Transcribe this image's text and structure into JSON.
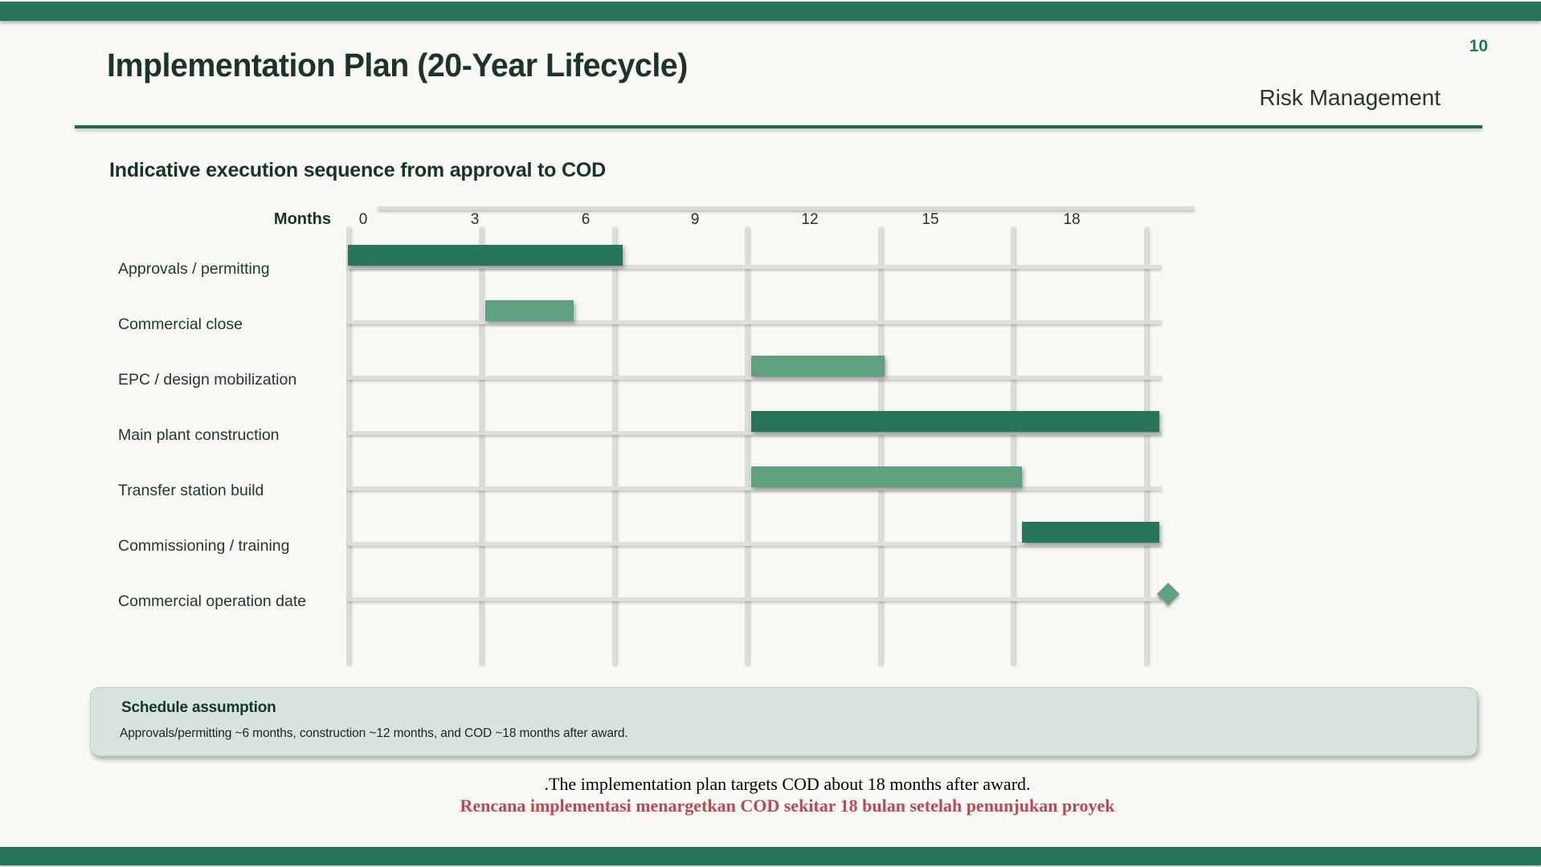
{
  "slide": {
    "page_number": "10",
    "title": "Implementation Plan (20-Year Lifecycle)",
    "header_right": "Risk Management",
    "section_heading": "Indicative execution sequence from approval to COD",
    "footer_note_en": ".The implementation plan targets COD about 18 months after award.",
    "footer_note_id": "Rencana implementasi menargetkan COD sekitar 18 bulan setelah penunjukan proyek"
  },
  "callout": {
    "title": "Schedule assumption",
    "body": "Approvals/permitting ~6 months, construction ~12 months, and COD ~18 months after award."
  },
  "colors": {
    "accent_dark_green": "#26755C",
    "accent_light_green": "#5FA07E",
    "band_green": "#27755D",
    "rule_green": "#1D6B50",
    "page_number_green": "#1E7A56",
    "note_red": "#BF4751",
    "callout_bg": "#D7E3DC",
    "grid_gray": "#D9DED9",
    "background": "#F8F8F5"
  },
  "chart_data": {
    "type": "gantt",
    "title": "Indicative execution sequence from approval to COD",
    "axis_label": "Months",
    "tick_values": [
      0,
      3,
      6,
      9,
      12,
      15,
      18
    ],
    "axis_range_months": [
      0,
      21
    ],
    "grid": "on",
    "tasks": [
      {
        "label": "Approvals / permitting",
        "start": 0,
        "end": 6.2,
        "style": "dark"
      },
      {
        "label": "Commercial close",
        "start": 3.1,
        "end": 5.1,
        "style": "light"
      },
      {
        "label": "EPC / design mobilization",
        "start": 9.1,
        "end": 12.1,
        "style": "light"
      },
      {
        "label": "Main plant construction",
        "start": 9.1,
        "end": 18.3,
        "style": "dark"
      },
      {
        "label": "Transfer station build",
        "start": 9.1,
        "end": 15.2,
        "style": "light"
      },
      {
        "label": "Commissioning / training",
        "start": 15.2,
        "end": 18.3,
        "style": "dark"
      },
      {
        "label": "Commercial operation date",
        "milestone": 18.5,
        "style": "light"
      }
    ]
  }
}
